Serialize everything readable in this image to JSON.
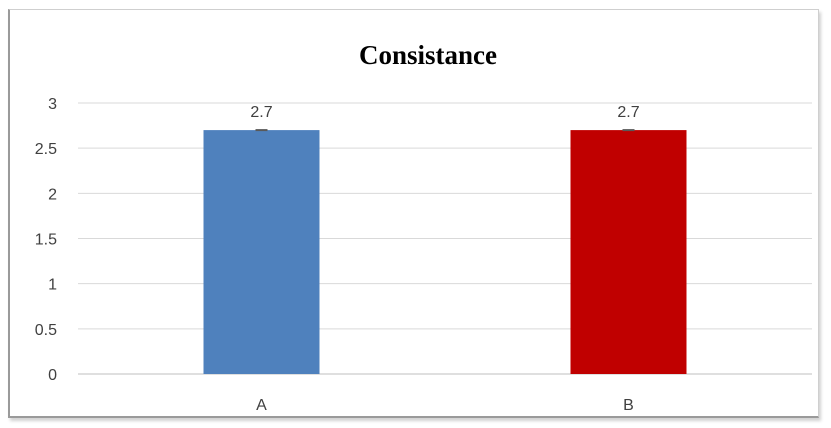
{
  "chart_data": {
    "type": "bar",
    "title": "Consistance",
    "categories": [
      "A",
      "B"
    ],
    "values": [
      2.7,
      2.7
    ],
    "colors": [
      "#4f81bd",
      "#c00000"
    ],
    "data_labels": [
      "2.7",
      "2.7"
    ],
    "error_bar_color": "#595959",
    "ylim": [
      0,
      3
    ],
    "y_ticks": [
      "0",
      "0.5",
      "1",
      "1.5",
      "2",
      "2.5",
      "3"
    ],
    "y_tick_values": [
      0,
      0.5,
      1,
      1.5,
      2,
      2.5,
      3
    ],
    "grid": true,
    "legend": "none",
    "xlabel": "",
    "ylabel": ""
  }
}
